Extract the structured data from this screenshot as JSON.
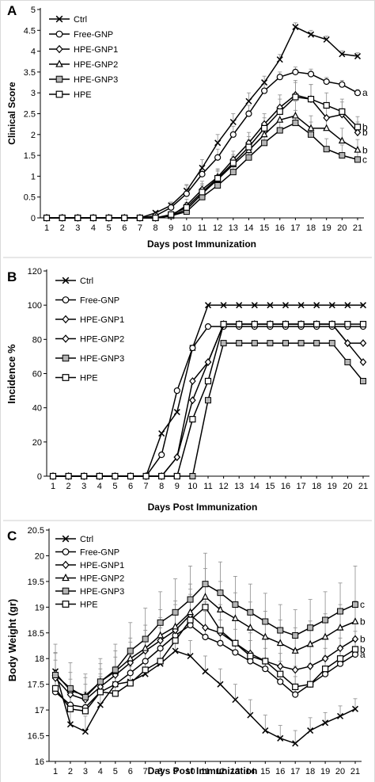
{
  "colors": {
    "line": "#000000",
    "filled_marker": "#b5b5b5",
    "background": "#ffffff"
  },
  "chart_data": [
    {
      "type": "line",
      "panel_label": "A",
      "xlabel": "Days post Immunization",
      "ylabel": "Clinical Score",
      "xlim": [
        1,
        21
      ],
      "ylim": [
        0,
        5
      ],
      "x_ticks": [
        1,
        2,
        3,
        4,
        5,
        6,
        7,
        8,
        9,
        10,
        11,
        12,
        13,
        14,
        15,
        16,
        17,
        18,
        19,
        20,
        21
      ],
      "y_ticks": [
        0,
        0.5,
        1,
        1.5,
        2,
        2.5,
        3,
        3.5,
        4,
        4.5,
        5
      ],
      "legend_position": "top-left",
      "x": [
        1,
        2,
        3,
        4,
        5,
        6,
        7,
        8,
        9,
        10,
        11,
        12,
        13,
        14,
        15,
        16,
        17,
        18,
        19,
        20,
        21
      ],
      "series": [
        {
          "name": "Ctrl",
          "marker": "x",
          "values": [
            0,
            0,
            0,
            0,
            0,
            0,
            0,
            0.12,
            0.3,
            0.65,
            1.2,
            1.8,
            2.3,
            2.8,
            3.25,
            3.8,
            4.58,
            4.4,
            4.28,
            3.93,
            3.88
          ],
          "errors": [
            0,
            0,
            0,
            0,
            0,
            0,
            0,
            0.04,
            0.08,
            0.15,
            0.2,
            0.2,
            0.2,
            0.2,
            0.15,
            0.12,
            0.1,
            0.1,
            0.08,
            0.08,
            0.08
          ]
        },
        {
          "name": "Free-GNP",
          "marker": "open-circle",
          "values": [
            0,
            0,
            0,
            0,
            0,
            0,
            0,
            0.05,
            0.25,
            0.58,
            1.05,
            1.45,
            2,
            2.5,
            3.05,
            3.38,
            3.5,
            3.45,
            3.27,
            3.2,
            3
          ],
          "errors": [
            0,
            0,
            0,
            0,
            0,
            0,
            0,
            0.05,
            0.1,
            0.2,
            0.2,
            0.2,
            0.2,
            0.2,
            0.15,
            0.12,
            0.12,
            0.12,
            0.1,
            0.1,
            0.08
          ],
          "significance": "a"
        },
        {
          "name": "HPE-GNP1",
          "marker": "open-diamond",
          "values": [
            0,
            0,
            0,
            0,
            0,
            0,
            0,
            0,
            0.05,
            0.3,
            0.68,
            0.98,
            1.4,
            1.8,
            2.25,
            2.65,
            2.95,
            2.85,
            2.4,
            2.48,
            2.05
          ],
          "errors": [
            0,
            0,
            0,
            0,
            0,
            0,
            0,
            0,
            0.05,
            0.15,
            0.2,
            0.2,
            0.2,
            0.25,
            0.25,
            0.3,
            0.35,
            0.35,
            0.3,
            0.3,
            0.25
          ],
          "significance": "b"
        },
        {
          "name": "HPE-GNP2",
          "marker": "open-triangle",
          "values": [
            0,
            0,
            0,
            0,
            0,
            0,
            0,
            0,
            0.05,
            0.2,
            0.58,
            0.92,
            1.28,
            1.62,
            2,
            2.35,
            2.45,
            2.15,
            2.15,
            1.85,
            1.63
          ],
          "errors": [
            0,
            0,
            0,
            0,
            0,
            0,
            0,
            0,
            0.05,
            0.12,
            0.2,
            0.2,
            0.2,
            0.25,
            0.25,
            0.3,
            0.35,
            0.3,
            0.3,
            0.3,
            0.25
          ],
          "significance": "b"
        },
        {
          "name": "HPE-GNP3",
          "marker": "filled-square",
          "values": [
            0,
            0,
            0,
            0,
            0,
            0,
            0,
            0,
            0.05,
            0.15,
            0.5,
            0.78,
            1.1,
            1.45,
            1.8,
            2.1,
            2.28,
            2,
            1.65,
            1.5,
            1.4
          ],
          "errors": [
            0,
            0,
            0,
            0,
            0,
            0,
            0,
            0,
            0.05,
            0.1,
            0.15,
            0.2,
            0.2,
            0.2,
            0.25,
            0.25,
            0.3,
            0.3,
            0.25,
            0.25,
            0.2
          ],
          "significance": "c"
        },
        {
          "name": "HPE",
          "marker": "open-square",
          "values": [
            0,
            0,
            0,
            0,
            0,
            0,
            0,
            0,
            0.08,
            0.25,
            0.62,
            0.95,
            1.32,
            1.7,
            2.15,
            2.55,
            2.9,
            2.85,
            2.7,
            2.55,
            2.18
          ],
          "errors": [
            0,
            0,
            0,
            0,
            0,
            0,
            0,
            0,
            0.05,
            0.12,
            0.2,
            0.2,
            0.2,
            0.25,
            0.25,
            0.3,
            0.35,
            0.35,
            0.3,
            0.3,
            0.25
          ],
          "significance": "b"
        }
      ]
    },
    {
      "type": "line",
      "panel_label": "B",
      "xlabel": "Days Post Immunization",
      "ylabel": "Incidence %",
      "xlim": [
        1,
        21
      ],
      "ylim": [
        0,
        120
      ],
      "x_ticks": [
        1,
        2,
        3,
        4,
        5,
        6,
        7,
        8,
        9,
        10,
        11,
        12,
        13,
        14,
        15,
        16,
        17,
        18,
        19,
        20,
        21
      ],
      "y_ticks": [
        0,
        20,
        40,
        60,
        80,
        100,
        120
      ],
      "legend_position": "top-left",
      "x": [
        1,
        2,
        3,
        4,
        5,
        6,
        7,
        8,
        9,
        10,
        11,
        12,
        13,
        14,
        15,
        16,
        17,
        18,
        19,
        20,
        21
      ],
      "series": [
        {
          "name": "Ctrl",
          "marker": "x",
          "values": [
            0,
            0,
            0,
            0,
            0,
            0,
            0,
            25,
            37.5,
            75,
            100,
            100,
            100,
            100,
            100,
            100,
            100,
            100,
            100,
            100,
            100
          ]
        },
        {
          "name": "Free-GNP",
          "marker": "open-circle",
          "values": [
            0,
            0,
            0,
            0,
            0,
            0,
            0,
            12.5,
            50,
            75,
            87.5,
            87.5,
            87.5,
            87.5,
            87.5,
            87.5,
            87.5,
            87.5,
            87.5,
            87.5,
            87.5
          ]
        },
        {
          "name": "HPE-GNP1",
          "marker": "open-diamond",
          "values": [
            0,
            0,
            0,
            0,
            0,
            0,
            0,
            0,
            11.1,
            55.6,
            66.7,
            88.9,
            88.9,
            88.9,
            88.9,
            88.9,
            88.9,
            88.9,
            88.9,
            77.8,
            77.8
          ]
        },
        {
          "name": "HPE-GNP2",
          "marker": "open-diamond",
          "values": [
            0,
            0,
            0,
            0,
            0,
            0,
            0,
            0,
            11.1,
            44.4,
            66.7,
            88.9,
            88.9,
            88.9,
            88.9,
            88.9,
            88.9,
            88.9,
            88.9,
            77.8,
            66.7
          ]
        },
        {
          "name": "HPE-GNP3",
          "marker": "filled-square",
          "values": [
            0,
            0,
            0,
            0,
            0,
            0,
            0,
            0,
            0,
            0,
            44.4,
            77.8,
            77.8,
            77.8,
            77.8,
            77.8,
            77.8,
            77.8,
            77.8,
            66.7,
            55.6
          ]
        },
        {
          "name": "HPE",
          "marker": "open-square",
          "values": [
            0,
            0,
            0,
            0,
            0,
            0,
            0,
            0,
            0,
            33.3,
            55.6,
            88.9,
            88.9,
            88.9,
            88.9,
            88.9,
            88.9,
            88.9,
            88.9,
            88.9,
            88.9
          ]
        }
      ]
    },
    {
      "type": "line",
      "panel_label": "C",
      "xlabel": "Days Post Immunization",
      "ylabel": "Body Weight (gr)",
      "xlim": [
        1,
        21
      ],
      "ylim": [
        16,
        20.5
      ],
      "x_ticks": [
        1,
        2,
        3,
        4,
        5,
        6,
        7,
        8,
        9,
        10,
        11,
        12,
        13,
        14,
        15,
        16,
        17,
        18,
        19,
        20,
        21
      ],
      "y_ticks": [
        16,
        16.5,
        17,
        17.5,
        18,
        18.5,
        19,
        19.5,
        20,
        20.5
      ],
      "legend_position": "top-left",
      "x": [
        1,
        2,
        3,
        4,
        5,
        6,
        7,
        8,
        9,
        10,
        11,
        12,
        13,
        14,
        15,
        16,
        17,
        18,
        19,
        20,
        21
      ],
      "series": [
        {
          "name": "Ctrl",
          "marker": "x",
          "values": [
            17.75,
            16.72,
            16.58,
            17.1,
            17.5,
            17.55,
            17.7,
            17.9,
            18.15,
            18.05,
            17.75,
            17.5,
            17.2,
            16.9,
            16.6,
            16.45,
            16.35,
            16.6,
            16.75,
            16.88,
            17.02
          ],
          "errors": [
            0.35,
            0.3,
            0.3,
            0.35,
            0.3,
            0.3,
            0.3,
            0.3,
            0.3,
            0.3,
            0.3,
            0.3,
            0.3,
            0.3,
            0.3,
            0.25,
            0.25,
            0.25,
            0.2,
            0.2,
            0.2
          ]
        },
        {
          "name": "Free-GNP",
          "marker": "open-circle",
          "values": [
            17.35,
            17.1,
            17.05,
            17.35,
            17.5,
            17.72,
            17.95,
            18.2,
            18.45,
            18.65,
            18.42,
            18.3,
            18.12,
            17.95,
            17.8,
            17.55,
            17.3,
            17.5,
            17.7,
            17.9,
            18.08
          ],
          "errors": [
            0.35,
            0.3,
            0.3,
            0.3,
            0.35,
            0.35,
            0.4,
            0.4,
            0.45,
            0.5,
            0.5,
            0.45,
            0.45,
            0.4,
            0.4,
            0.4,
            0.35,
            0.35,
            0.35,
            0.35,
            0.3
          ],
          "significance": "a"
        },
        {
          "name": "HPE-GNP1",
          "marker": "open-diamond",
          "values": [
            17.62,
            17.3,
            17.2,
            17.45,
            17.68,
            17.92,
            18.15,
            18.35,
            18.55,
            18.85,
            18.6,
            18.5,
            18.3,
            18.1,
            17.95,
            17.85,
            17.78,
            17.85,
            18,
            18.2,
            18.38
          ],
          "errors": [
            0.35,
            0.3,
            0.3,
            0.35,
            0.35,
            0.4,
            0.4,
            0.45,
            0.5,
            0.5,
            0.5,
            0.5,
            0.45,
            0.45,
            0.45,
            0.4,
            0.4,
            0.4,
            0.4,
            0.4,
            0.35
          ],
          "significance": "b"
        },
        {
          "name": "HPE-GNP2",
          "marker": "open-triangle",
          "values": [
            17.72,
            17.38,
            17.28,
            17.55,
            17.75,
            18,
            18.2,
            18.45,
            18.62,
            18.9,
            19.2,
            18.95,
            18.78,
            18.6,
            18.42,
            18.3,
            18.15,
            18.28,
            18.42,
            18.6,
            18.72
          ],
          "errors": [
            0.4,
            0.35,
            0.35,
            0.35,
            0.4,
            0.4,
            0.45,
            0.5,
            0.5,
            0.55,
            0.55,
            0.55,
            0.5,
            0.5,
            0.5,
            0.45,
            0.45,
            0.45,
            0.45,
            0.45,
            0.4
          ],
          "significance": "b"
        },
        {
          "name": "HPE-GNP3",
          "marker": "filled-square",
          "values": [
            17.68,
            17.42,
            17.25,
            17.55,
            17.78,
            18.15,
            18.38,
            18.7,
            18.9,
            19.15,
            19.45,
            19.28,
            19.05,
            18.9,
            18.72,
            18.55,
            18.45,
            18.6,
            18.75,
            18.92,
            19.05
          ],
          "errors": [
            0.6,
            0.5,
            0.45,
            0.45,
            0.5,
            0.55,
            0.6,
            0.6,
            0.65,
            0.65,
            0.6,
            0.6,
            0.55,
            0.55,
            0.55,
            0.5,
            0.5,
            0.55,
            0.55,
            0.55,
            0.75
          ],
          "significance": "c"
        },
        {
          "name": "HPE",
          "marker": "open-square",
          "values": [
            17.42,
            17.02,
            16.98,
            17.35,
            17.32,
            17.52,
            17.78,
            17.95,
            18.35,
            18.75,
            19,
            18.55,
            18.3,
            18.05,
            17.95,
            17.7,
            17.45,
            17.5,
            17.8,
            18,
            18.18
          ],
          "errors": [
            0.35,
            0.3,
            0.3,
            0.35,
            0.35,
            0.4,
            0.4,
            0.45,
            0.5,
            0.5,
            0.5,
            0.5,
            0.45,
            0.45,
            0.45,
            0.4,
            0.4,
            0.4,
            0.4,
            0.4,
            0.35
          ],
          "significance": "b"
        }
      ]
    }
  ]
}
